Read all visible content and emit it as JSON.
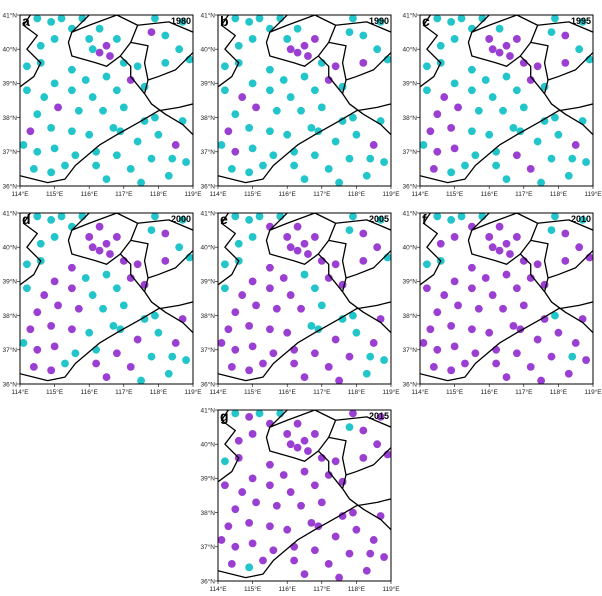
{
  "map": {
    "xlim": [
      114,
      119
    ],
    "ylim": [
      36,
      41
    ],
    "xticks": [
      {
        "value": 114,
        "label": "114°E"
      },
      {
        "value": 115,
        "label": "115°E"
      },
      {
        "value": 116,
        "label": "116°E"
      },
      {
        "value": 117,
        "label": "117°E"
      },
      {
        "value": 118,
        "label": "118°E"
      },
      {
        "value": 119,
        "label": "119°E"
      }
    ],
    "yticks": [
      {
        "value": 36,
        "label": "36°N"
      },
      {
        "value": 37,
        "label": "37°N"
      },
      {
        "value": 38,
        "label": "38°N"
      },
      {
        "value": 39,
        "label": "39°N"
      },
      {
        "value": 40,
        "label": "40°N"
      },
      {
        "value": 41,
        "label": "41°N"
      }
    ],
    "colors": {
      "base": "#22c5c9",
      "highlight": "#9a3fd2"
    },
    "stations": [
      [
        116.3,
        39.9
      ],
      [
        116.5,
        40.1
      ],
      [
        116.1,
        40.0
      ],
      [
        116.6,
        39.8
      ],
      [
        116.0,
        40.3
      ],
      [
        116.8,
        40.3
      ],
      [
        116.3,
        40.6
      ],
      [
        117.2,
        39.1
      ],
      [
        117.4,
        39.5
      ],
      [
        117.0,
        39.6
      ],
      [
        117.6,
        38.9
      ],
      [
        114.9,
        40.8
      ],
      [
        115.5,
        40.6
      ],
      [
        115.0,
        40.3
      ],
      [
        114.6,
        40.1
      ],
      [
        115.8,
        40.9
      ],
      [
        117.9,
        40.9
      ],
      [
        118.2,
        40.4
      ],
      [
        118.6,
        40.0
      ],
      [
        118.9,
        39.7
      ],
      [
        118.2,
        39.6
      ],
      [
        117.8,
        40.5
      ],
      [
        115.5,
        39.4
      ],
      [
        115.9,
        39.1
      ],
      [
        116.5,
        39.2
      ],
      [
        115.0,
        39.0
      ],
      [
        114.7,
        38.6
      ],
      [
        115.5,
        38.8
      ],
      [
        116.1,
        38.6
      ],
      [
        116.8,
        38.8
      ],
      [
        114.5,
        38.1
      ],
      [
        115.1,
        38.3
      ],
      [
        115.7,
        38.2
      ],
      [
        116.4,
        38.2
      ],
      [
        117.0,
        38.3
      ],
      [
        114.3,
        37.6
      ],
      [
        114.9,
        37.7
      ],
      [
        115.5,
        37.6
      ],
      [
        116.0,
        37.5
      ],
      [
        116.7,
        37.7
      ],
      [
        114.5,
        37.0
      ],
      [
        115.0,
        37.1
      ],
      [
        115.6,
        36.9
      ],
      [
        114.4,
        36.5
      ],
      [
        114.9,
        36.4
      ],
      [
        115.3,
        36.6
      ],
      [
        114.2,
        39.5
      ],
      [
        114.2,
        38.8
      ],
      [
        114.1,
        37.2
      ],
      [
        116.2,
        36.6
      ],
      [
        116.8,
        36.9
      ],
      [
        117.4,
        37.3
      ],
      [
        118.0,
        37.5
      ],
      [
        118.5,
        37.2
      ],
      [
        118.8,
        36.7
      ],
      [
        117.2,
        36.5
      ],
      [
        116.5,
        36.2
      ],
      [
        117.8,
        36.8
      ],
      [
        118.3,
        36.3
      ],
      [
        117.5,
        36.1
      ],
      [
        116.9,
        37.6
      ],
      [
        118.7,
        37.9
      ],
      [
        114.5,
        40.9
      ],
      [
        118.7,
        40.8
      ],
      [
        115.2,
        40.9
      ],
      [
        117.6,
        37.9
      ],
      [
        114.6,
        39.6
      ],
      [
        116.2,
        37.0
      ],
      [
        117.9,
        38.0
      ],
      [
        118.4,
        36.8
      ]
    ]
  },
  "panels": [
    {
      "label": "a",
      "year": "1980",
      "highlighted": [
        0,
        1,
        3,
        7,
        21,
        31,
        35,
        53
      ]
    },
    {
      "label": "b",
      "year": "1990",
      "highlighted": [
        0,
        1,
        2,
        3,
        5,
        7,
        8,
        20,
        26,
        31,
        35,
        40,
        53
      ]
    },
    {
      "label": "c",
      "year": "1995",
      "highlighted": [
        0,
        1,
        2,
        3,
        4,
        5,
        7,
        8,
        9,
        17,
        20,
        26,
        30,
        31,
        35,
        36,
        40,
        41,
        43,
        50,
        53,
        55
      ]
    },
    {
      "label": "d",
      "year": "2000",
      "highlighted": [
        0,
        1,
        2,
        3,
        4,
        5,
        6,
        7,
        8,
        9,
        10,
        17,
        20,
        22,
        25,
        26,
        27,
        30,
        31,
        32,
        35,
        36,
        37,
        40,
        41,
        43,
        44,
        49,
        50,
        51,
        53,
        55,
        56,
        61
      ]
    },
    {
      "label": "e",
      "year": "2005",
      "highlighted": [
        0,
        1,
        2,
        3,
        4,
        5,
        6,
        7,
        8,
        9,
        10,
        12,
        17,
        18,
        20,
        22,
        23,
        25,
        26,
        27,
        28,
        30,
        31,
        32,
        33,
        35,
        36,
        37,
        38,
        40,
        41,
        42,
        43,
        44,
        45,
        48,
        49,
        50,
        51,
        53,
        55,
        56,
        57,
        59,
        61,
        67
      ]
    },
    {
      "label": "f",
      "year": "2010",
      "highlighted": [
        0,
        1,
        2,
        3,
        4,
        5,
        6,
        7,
        8,
        9,
        10,
        12,
        13,
        14,
        17,
        18,
        19,
        20,
        22,
        23,
        24,
        25,
        26,
        27,
        28,
        29,
        30,
        31,
        32,
        33,
        34,
        35,
        36,
        37,
        38,
        39,
        40,
        41,
        42,
        43,
        44,
        45,
        47,
        48,
        49,
        50,
        51,
        52,
        53,
        54,
        55,
        56,
        57,
        58,
        59,
        60,
        61,
        65,
        67
      ]
    },
    {
      "label": "g",
      "year": "2015",
      "highlighted": [
        0,
        1,
        2,
        3,
        4,
        5,
        6,
        7,
        8,
        9,
        10,
        11,
        12,
        13,
        14,
        16,
        17,
        18,
        19,
        20,
        22,
        23,
        24,
        25,
        26,
        27,
        28,
        29,
        30,
        31,
        32,
        33,
        34,
        35,
        36,
        37,
        38,
        39,
        40,
        41,
        42,
        43,
        45,
        47,
        48,
        49,
        50,
        51,
        52,
        53,
        54,
        55,
        56,
        57,
        58,
        59,
        60,
        61,
        63,
        65,
        66,
        67,
        68,
        69
      ]
    }
  ]
}
